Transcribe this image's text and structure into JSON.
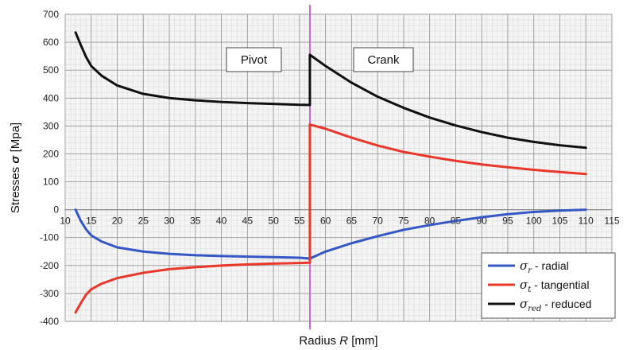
{
  "chart_data": {
    "type": "line",
    "xlabel": {
      "prefix": "Radius ",
      "symbol": "R",
      "suffix": " [mm]"
    },
    "ylabel": {
      "prefix": "Stresses ",
      "symbol": "σ",
      "suffix": " [Mpa]"
    },
    "xlim": [
      10,
      115
    ],
    "ylim": [
      -400,
      700
    ],
    "x_ticks": [
      10,
      15,
      20,
      25,
      30,
      35,
      40,
      45,
      50,
      55,
      60,
      65,
      70,
      75,
      80,
      85,
      90,
      95,
      100,
      105,
      110,
      115
    ],
    "y_ticks": [
      -400,
      -300,
      -200,
      -100,
      0,
      100,
      200,
      300,
      400,
      500,
      600,
      700
    ],
    "grid": true,
    "legend_position": "bottom-right",
    "regions": [
      {
        "label": "Pivot"
      },
      {
        "label": "Crank"
      }
    ],
    "divider_x": 57,
    "series": [
      {
        "name": "σr - radial",
        "legend": {
          "symbol": "σ",
          "subscript": "r",
          "text": " - radial"
        },
        "color": "#3557c4",
        "points": [
          [
            12,
            0
          ],
          [
            13,
            -40
          ],
          [
            14,
            -70
          ],
          [
            15,
            -92
          ],
          [
            17,
            -114
          ],
          [
            20,
            -135
          ],
          [
            25,
            -150
          ],
          [
            30,
            -158
          ],
          [
            35,
            -163
          ],
          [
            40,
            -166
          ],
          [
            45,
            -168
          ],
          [
            50,
            -170
          ],
          [
            55,
            -172
          ],
          [
            57,
            -175
          ],
          [
            60,
            -150
          ],
          [
            65,
            -120
          ],
          [
            70,
            -95
          ],
          [
            75,
            -72
          ],
          [
            80,
            -55
          ],
          [
            85,
            -40
          ],
          [
            90,
            -27
          ],
          [
            95,
            -16
          ],
          [
            100,
            -8
          ],
          [
            105,
            -3
          ],
          [
            110,
            0
          ]
        ]
      },
      {
        "name": "σt - tangential",
        "legend": {
          "symbol": "σ",
          "subscript": "t",
          "text": " - tangential"
        },
        "color": "#e8372b",
        "points": [
          [
            12,
            -368
          ],
          [
            13,
            -335
          ],
          [
            14,
            -305
          ],
          [
            15,
            -285
          ],
          [
            17,
            -265
          ],
          [
            20,
            -245
          ],
          [
            25,
            -226
          ],
          [
            30,
            -213
          ],
          [
            35,
            -206
          ],
          [
            40,
            -200
          ],
          [
            45,
            -196
          ],
          [
            50,
            -193
          ],
          [
            55,
            -191
          ],
          [
            57,
            -190
          ],
          [
            57,
            305
          ],
          [
            60,
            290
          ],
          [
            65,
            258
          ],
          [
            70,
            230
          ],
          [
            75,
            207
          ],
          [
            80,
            190
          ],
          [
            85,
            175
          ],
          [
            90,
            162
          ],
          [
            95,
            152
          ],
          [
            100,
            143
          ],
          [
            105,
            135
          ],
          [
            110,
            128
          ]
        ]
      },
      {
        "name": "σred - reduced",
        "legend": {
          "symbol": "σ",
          "subscript": "red",
          "text": " - reduced"
        },
        "color": "#111111",
        "points": [
          [
            12,
            635
          ],
          [
            13,
            590
          ],
          [
            14,
            548
          ],
          [
            15,
            515
          ],
          [
            17,
            480
          ],
          [
            20,
            445
          ],
          [
            25,
            415
          ],
          [
            30,
            400
          ],
          [
            35,
            392
          ],
          [
            40,
            386
          ],
          [
            45,
            382
          ],
          [
            50,
            379
          ],
          [
            55,
            376
          ],
          [
            57,
            375
          ],
          [
            57,
            555
          ],
          [
            60,
            515
          ],
          [
            65,
            455
          ],
          [
            70,
            405
          ],
          [
            75,
            365
          ],
          [
            80,
            330
          ],
          [
            85,
            302
          ],
          [
            90,
            278
          ],
          [
            95,
            258
          ],
          [
            100,
            243
          ],
          [
            105,
            231
          ],
          [
            110,
            222
          ]
        ]
      }
    ]
  }
}
